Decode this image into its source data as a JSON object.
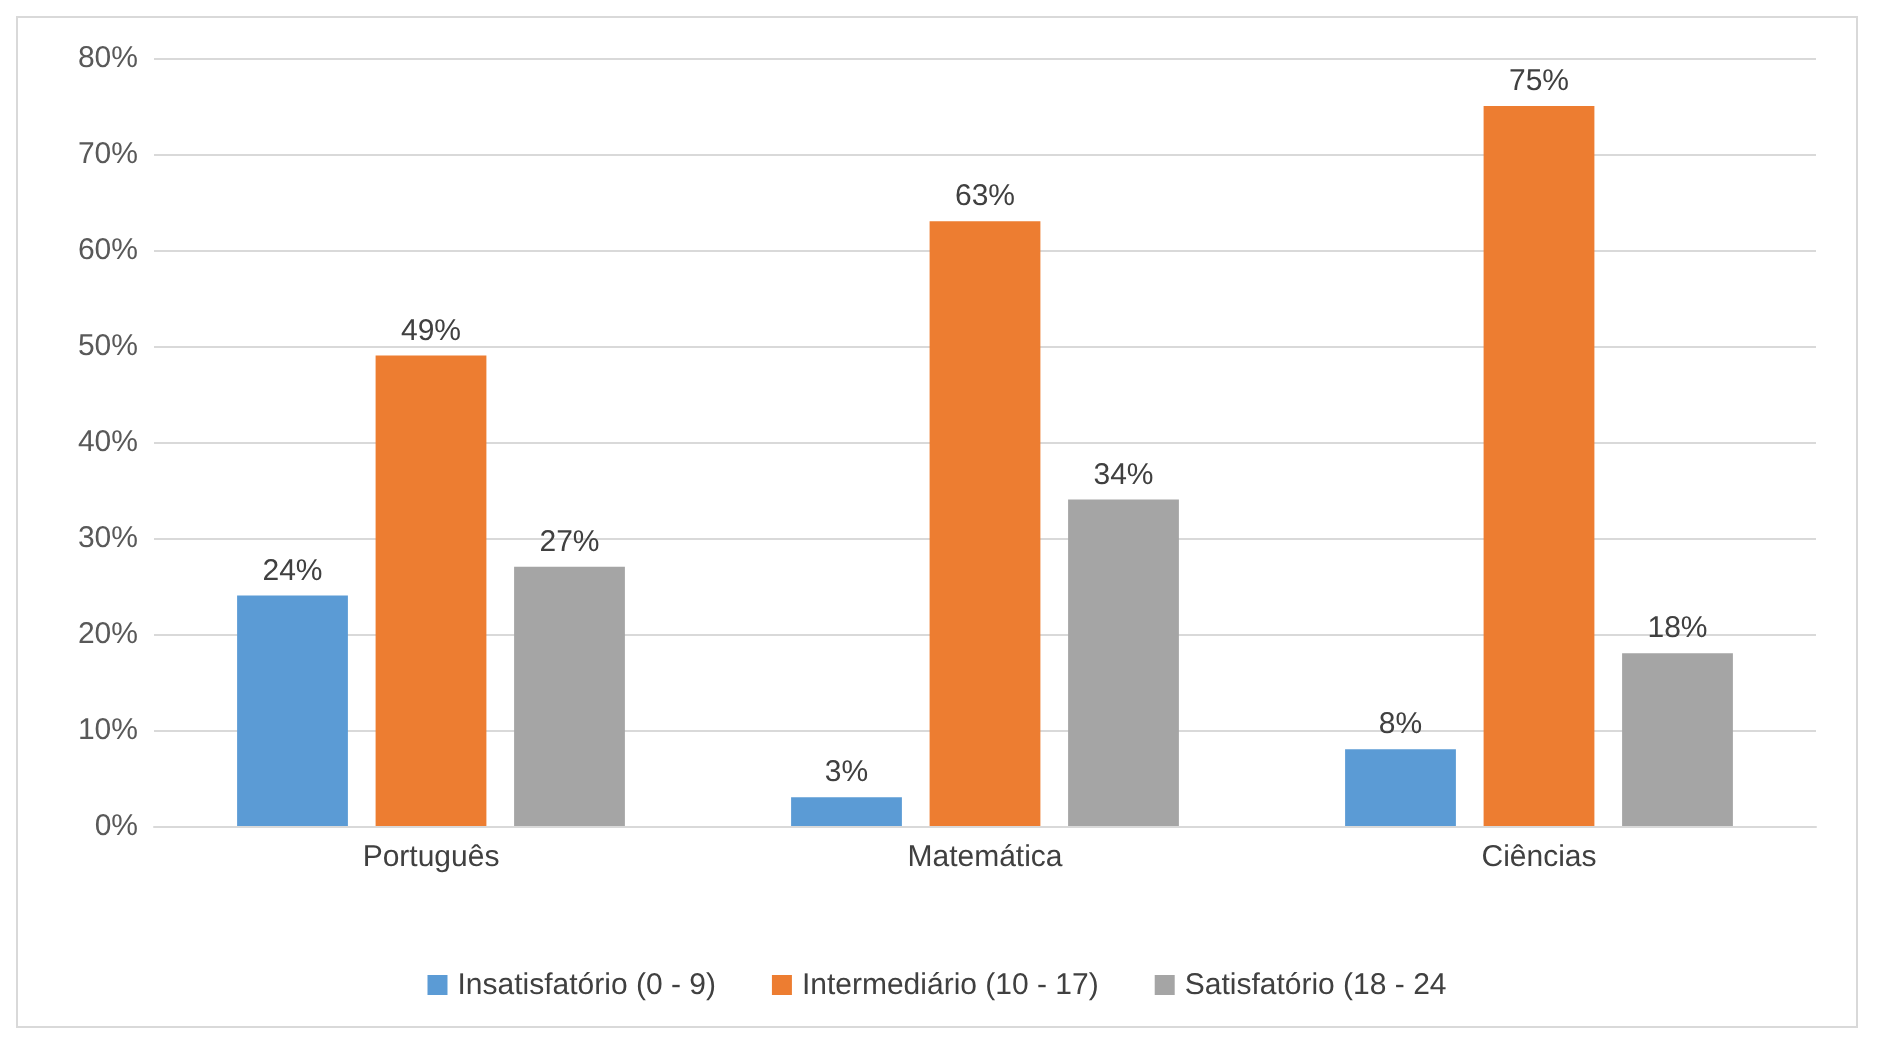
{
  "chart_data": {
    "type": "bar",
    "categories": [
      "Português",
      "Matemática",
      "Ciências"
    ],
    "series": [
      {
        "name": "Insatisfatório (0 - 9)",
        "color": "#5b9bd5",
        "values": [
          24,
          3,
          8
        ],
        "value_labels": [
          "24%",
          "3%",
          "8%"
        ]
      },
      {
        "name": "Intermediário (10 - 17)",
        "color": "#ed7d31",
        "values": [
          49,
          63,
          75
        ],
        "value_labels": [
          "49%",
          "63%",
          "75%"
        ]
      },
      {
        "name": "Satisfatório (18 - 24",
        "color": "#a5a5a5",
        "values": [
          27,
          34,
          18
        ],
        "value_labels": [
          "27%",
          "34%",
          "18%"
        ]
      }
    ],
    "ylim": [
      0,
      80
    ],
    "yticks": [
      {
        "value": 0,
        "label": "0%"
      },
      {
        "value": 10,
        "label": "10%"
      },
      {
        "value": 20,
        "label": "20%"
      },
      {
        "value": 30,
        "label": "30%"
      },
      {
        "value": 40,
        "label": "40%"
      },
      {
        "value": 50,
        "label": "50%"
      },
      {
        "value": 60,
        "label": "60%"
      },
      {
        "value": 70,
        "label": "70%"
      },
      {
        "value": 80,
        "label": "80%"
      }
    ],
    "grid": "y",
    "legend": "bottom"
  }
}
